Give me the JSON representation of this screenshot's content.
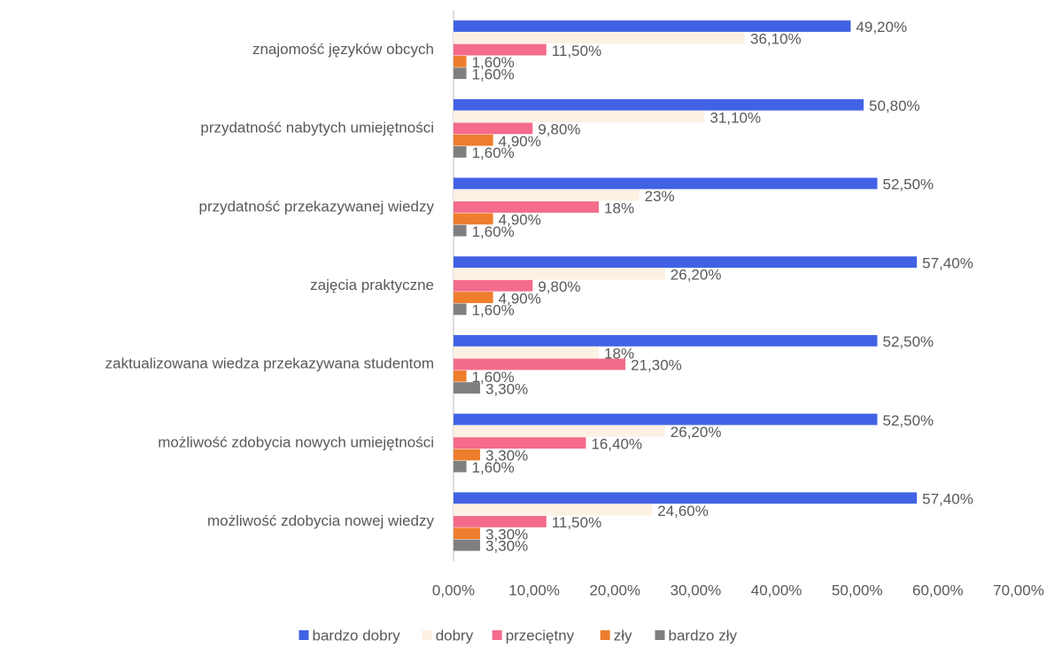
{
  "chart_data": {
    "type": "bar",
    "orientation": "horizontal",
    "categories": [
      "znajomość języków obcych",
      "przydatność nabytych umiejętności",
      "przydatność przekazywanej wiedzy",
      "zajęcia praktyczne",
      "zaktualizowana wiedza przekazywana studentom",
      "możliwość zdobycia nowych umiejętności",
      "możliwość zdobycia nowej wiedzy"
    ],
    "series": [
      {
        "name": "bardzo dobry",
        "color": "#4162e4",
        "values": [
          49.2,
          50.8,
          52.5,
          57.4,
          52.5,
          52.5,
          57.4
        ],
        "value_labels": [
          "49,20%",
          "50,80%",
          "52,50%",
          "57,40%",
          "52,50%",
          "52,50%",
          "57,40%"
        ]
      },
      {
        "name": "dobry",
        "color": "#fdf1e3",
        "values": [
          36.1,
          31.1,
          23,
          26.2,
          18,
          26.2,
          24.6
        ],
        "value_labels": [
          "36,10%",
          "31,10%",
          "23%",
          "26,20%",
          "18%",
          "26,20%",
          "24,60%"
        ]
      },
      {
        "name": "przeciętny",
        "color": "#f46b8b",
        "values": [
          11.5,
          9.8,
          18,
          9.8,
          21.3,
          16.4,
          11.5
        ],
        "value_labels": [
          "11,50%",
          "9,80%",
          "18%",
          "9,80%",
          "21,30%",
          "16,40%",
          "11,50%"
        ]
      },
      {
        "name": "zły",
        "color": "#ee7e2d",
        "values": [
          1.6,
          4.9,
          4.9,
          4.9,
          1.6,
          3.3,
          3.3
        ],
        "value_labels": [
          "1,60%",
          "4,90%",
          "4,90%",
          "4,90%",
          "1,60%",
          "3,30%",
          "3,30%"
        ]
      },
      {
        "name": "bardzo zły",
        "color": "#7f7f7f",
        "values": [
          1.6,
          1.6,
          1.6,
          1.6,
          3.3,
          1.6,
          3.3
        ],
        "value_labels": [
          "1,60%",
          "1,60%",
          "1,60%",
          "1,60%",
          "3,30%",
          "1,60%",
          "3,30%"
        ]
      }
    ],
    "xlim": [
      0,
      70
    ],
    "xticks": [
      {
        "value": 0,
        "label": "0,00%"
      },
      {
        "value": 10,
        "label": "10,00%"
      },
      {
        "value": 20,
        "label": "20,00%"
      },
      {
        "value": 30,
        "label": "30,00%"
      },
      {
        "value": 40,
        "label": "40,00%"
      },
      {
        "value": 50,
        "label": "50,00%"
      },
      {
        "value": 60,
        "label": "60,00%"
      },
      {
        "value": 70,
        "label": "70,00%"
      }
    ],
    "legend": "bottom"
  }
}
